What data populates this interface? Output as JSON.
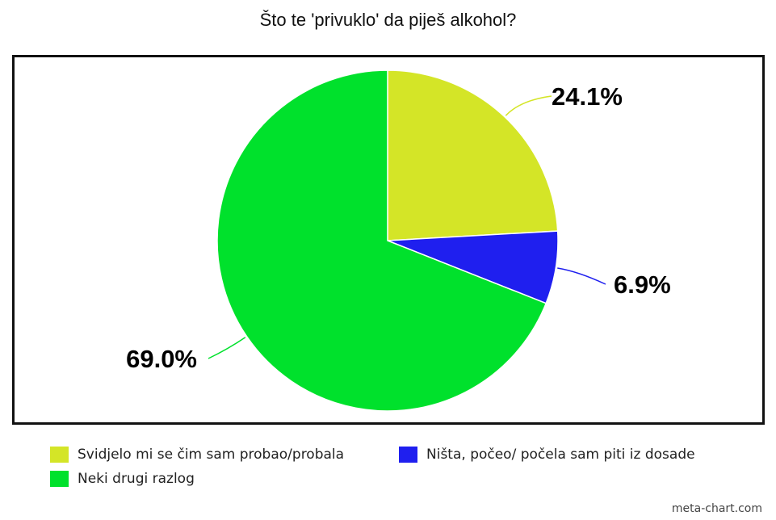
{
  "chart_data": {
    "type": "pie",
    "title": "Što te 'privuklo' da piješ alkohol?",
    "slices": [
      {
        "label": "Svidjelo mi se čim sam probao/probala",
        "value": 24.1,
        "display": "24.1%",
        "color": "#d4e527"
      },
      {
        "label": "Ništa, počeo/ počela sam piti iz dosade",
        "value": 6.9,
        "display": "6.9%",
        "color": "#1f1fef"
      },
      {
        "label": "Neki drugi razlog",
        "value": 69.0,
        "display": "69.0%",
        "color": "#00e12c"
      }
    ],
    "legend_position": "bottom"
  },
  "credit": "meta-chart.com"
}
